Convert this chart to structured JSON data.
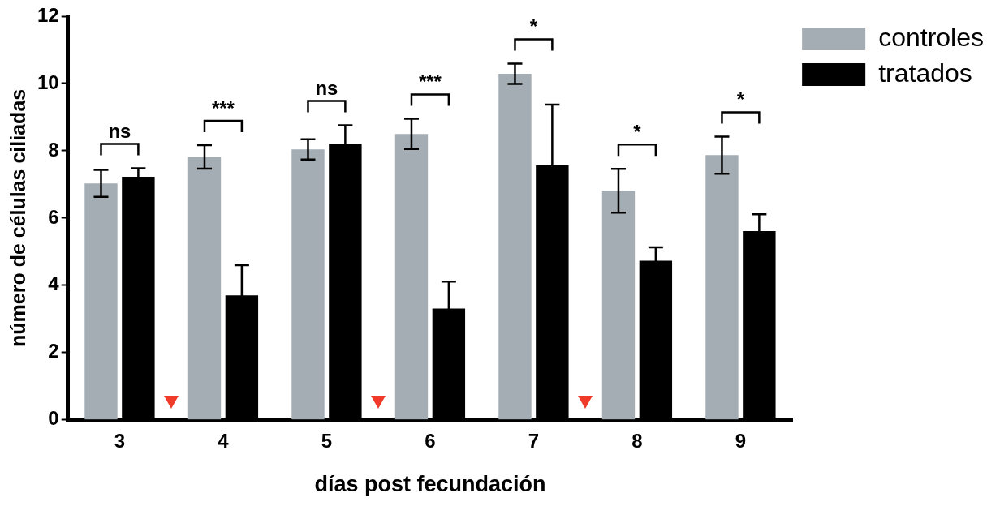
{
  "chart_data": {
    "type": "bar",
    "xlabel": "días post fecundación",
    "ylabel": "número de células ciliadas",
    "categories": [
      "3",
      "4",
      "5",
      "6",
      "7",
      "8",
      "9"
    ],
    "series": [
      {
        "name": "controles",
        "color": "#a3adb3",
        "values": [
          7.03,
          7.82,
          8.04,
          8.5,
          10.29,
          6.81,
          7.87
        ],
        "errors": [
          0.4,
          0.35,
          0.3,
          0.45,
          0.3,
          0.65,
          0.55
        ]
      },
      {
        "name": "tratados",
        "color": "#000000",
        "values": [
          7.23,
          3.7,
          8.21,
          3.31,
          7.57,
          4.73,
          5.61
        ],
        "errors": [
          0.25,
          0.9,
          0.55,
          0.8,
          1.8,
          0.4,
          0.5
        ]
      }
    ],
    "ylim": [
      0,
      12
    ],
    "yticks": [
      0,
      2,
      4,
      6,
      8,
      10,
      12
    ],
    "grid": false,
    "legend": "top right",
    "annotations": [
      "ns",
      "***",
      "ns",
      "***",
      "*",
      "*",
      "*"
    ]
  }
}
